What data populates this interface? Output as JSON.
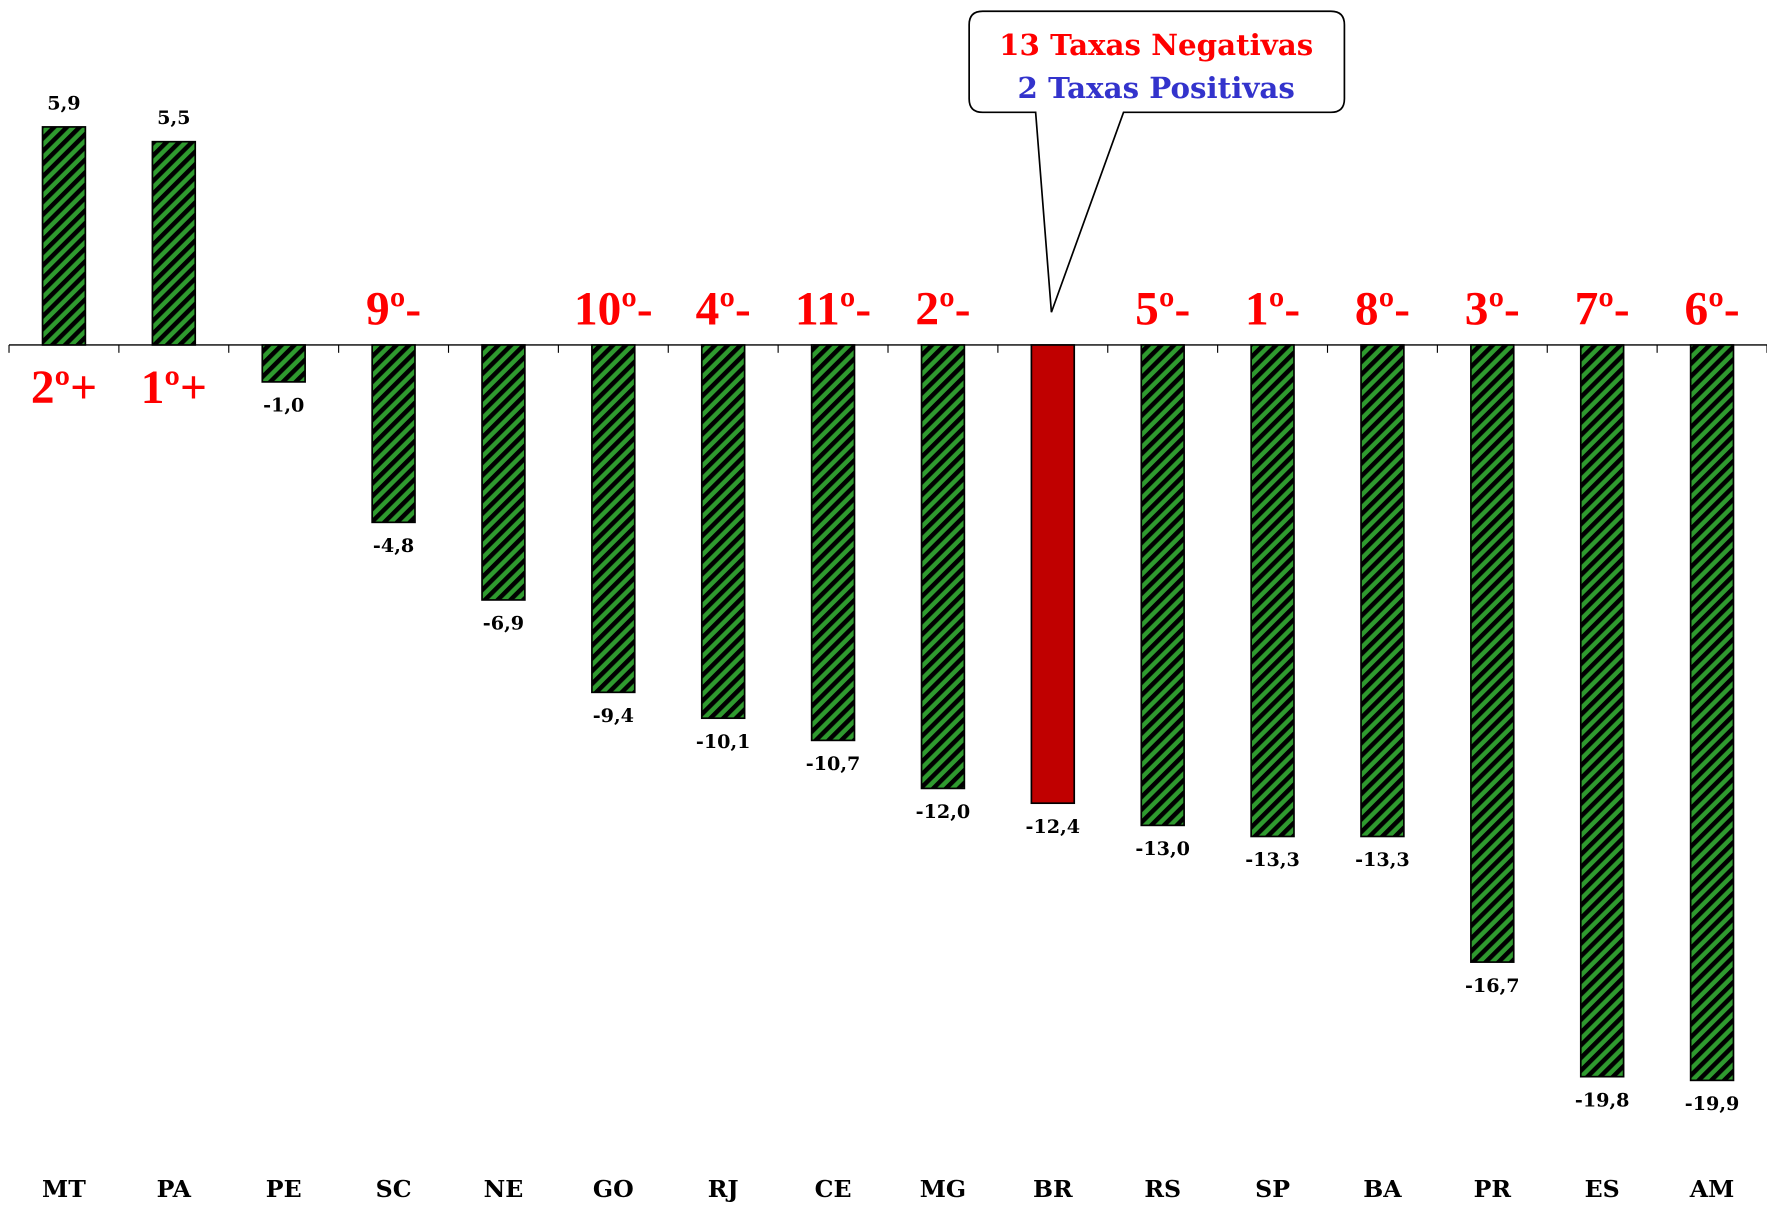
{
  "chart_data": {
    "type": "bar",
    "categories": [
      "MT",
      "PA",
      "PE",
      "SC",
      "NE",
      "GO",
      "RJ",
      "CE",
      "MG",
      "BR",
      "RS",
      "SP",
      "BA",
      "PR",
      "ES",
      "AM"
    ],
    "values": [
      5.9,
      5.5,
      -1.0,
      -4.8,
      -6.9,
      -9.4,
      -10.1,
      -10.7,
      -12.0,
      -12.4,
      -13.0,
      -13.3,
      -13.3,
      -16.7,
      -19.8,
      -19.9
    ],
    "value_labels": [
      "5,9",
      "5,5",
      "-1,0",
      "-4,8",
      "-6,9",
      "-9,4",
      "-10,1",
      "-10,7",
      "-12,0",
      "-12,4",
      "-13,0",
      "-13,3",
      "-13,3",
      "-16,7",
      "-19,8",
      "-19,9"
    ],
    "colors": [
      "#2f9a2f",
      "#2f9a2f",
      "#2f9a2f",
      "#2f9a2f",
      "#2f9a2f",
      "#2f9a2f",
      "#2f9a2f",
      "#2f9a2f",
      "#2f9a2f",
      "#c00000",
      "#2f9a2f",
      "#2f9a2f",
      "#2f9a2f",
      "#2f9a2f",
      "#2f9a2f",
      "#2f9a2f"
    ],
    "rank_labels": [
      "2º+",
      "1º+",
      null,
      "9º-",
      null,
      "10º-",
      "4º-",
      "11º-",
      "2º-",
      null,
      "5º-",
      "1º-",
      "8º-",
      "3º-",
      "7º-",
      "6º-"
    ],
    "annotations": [
      "13 Taxas Negativas",
      "2 Taxas Positivas"
    ],
    "ylim": [
      -22,
      9
    ]
  }
}
